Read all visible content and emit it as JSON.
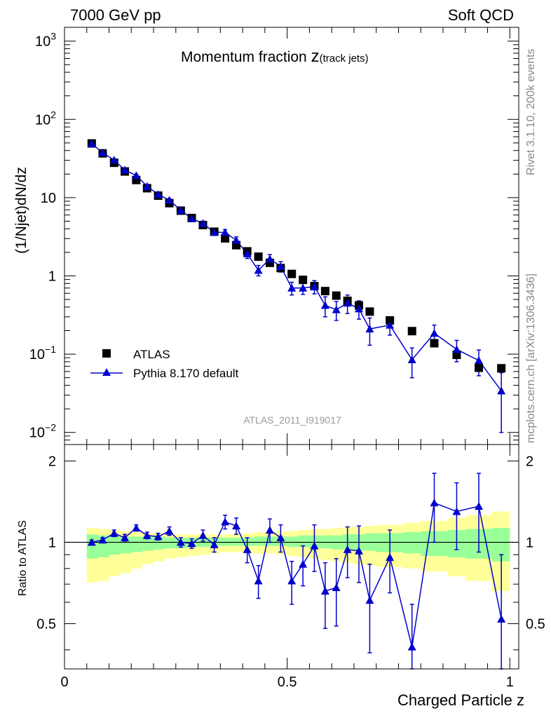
{
  "header": {
    "left": "7000 GeV pp",
    "right": "Soft QCD"
  },
  "side_labels": {
    "rivet": "Rivet 3.1.10,  200k events",
    "mcplots": "mcplots.cern.ch [arXiv:1306.3436]"
  },
  "colors": {
    "pythia": "#0000cc",
    "atlas": "#000000",
    "band_inner": "#99ff99",
    "band_outer": "#ffff99",
    "analysis_label": "#999999"
  },
  "chart_data": [
    {
      "type": "scatter",
      "title": "Momentum fraction",
      "title_symbol": "z",
      "title_subscript": "(track jets)",
      "ylabel": "(1/Njet)dN/dz",
      "yscale": "log",
      "ylim": [
        0.007,
        1500
      ],
      "xlim": [
        0,
        1.02
      ],
      "analysis_label": "ATLAS_2011_I919017",
      "y_ticks": [
        {
          "value": 1000,
          "base": "10",
          "exp": "3"
        },
        {
          "value": 100,
          "base": "10",
          "exp": "2"
        },
        {
          "value": 10,
          "base": "10",
          "exp": ""
        },
        {
          "value": 1,
          "base": "1",
          "exp": ""
        },
        {
          "value": 0.1,
          "base": "10",
          "exp": "−1"
        },
        {
          "value": 0.01,
          "base": "10",
          "exp": "−2"
        }
      ],
      "legend": {
        "position": "bottom-left",
        "entries": [
          "ATLAS",
          "Pythia 8.170 default"
        ]
      },
      "x": [
        0.0611,
        0.0857,
        0.1114,
        0.1354,
        0.1611,
        0.1854,
        0.2103,
        0.2354,
        0.2611,
        0.2857,
        0.3109,
        0.3363,
        0.3606,
        0.3857,
        0.4103,
        0.4354,
        0.4611,
        0.4854,
        0.5103,
        0.5354,
        0.5611,
        0.5854,
        0.6103,
        0.6354,
        0.6611,
        0.6854,
        0.7306,
        0.7803,
        0.8303,
        0.8806,
        0.9303,
        0.9809
      ],
      "series": [
        {
          "name": "ATLAS",
          "values": [
            49.3,
            36.8,
            27.9,
            21.6,
            16.8,
            13.2,
            10.6,
            8.5,
            6.82,
            5.49,
            4.46,
            3.67,
            3.02,
            2.47,
            2.06,
            1.76,
            1.47,
            1.26,
            1.06,
            0.89,
            0.74,
            0.64,
            0.56,
            0.48,
            0.42,
            0.35,
            0.27,
            0.197,
            0.138,
            0.098,
            0.067,
            0.066
          ]
        },
        {
          "name": "Pythia 8.170 default",
          "values": [
            49.0,
            37.5,
            30.2,
            22.6,
            19.2,
            14.0,
            11.0,
            9.3,
            6.9,
            5.4,
            4.7,
            3.6,
            3.6,
            2.85,
            1.92,
            1.18,
            1.65,
            1.32,
            0.7,
            0.7,
            0.73,
            0.42,
            0.37,
            0.45,
            0.38,
            0.21,
            0.235,
            0.085,
            0.185,
            0.115,
            0.083,
            0.034
          ],
          "err_down": [
            1.2,
            0.9,
            0.8,
            0.7,
            0.6,
            0.5,
            0.4,
            0.4,
            0.3,
            0.3,
            0.3,
            0.3,
            0.3,
            0.3,
            0.25,
            0.18,
            0.22,
            0.2,
            0.13,
            0.12,
            0.14,
            0.12,
            0.1,
            0.12,
            0.1,
            0.08,
            0.06,
            0.035,
            0.05,
            0.035,
            0.03,
            0.024
          ],
          "err_up": [
            1.2,
            0.9,
            0.8,
            0.7,
            0.6,
            0.5,
            0.4,
            0.4,
            0.3,
            0.3,
            0.3,
            0.3,
            0.3,
            0.3,
            0.25,
            0.18,
            0.22,
            0.2,
            0.13,
            0.12,
            0.14,
            0.12,
            0.1,
            0.12,
            0.1,
            0.08,
            0.06,
            0.035,
            0.05,
            0.035,
            0.03,
            0.024
          ]
        }
      ]
    },
    {
      "type": "scatter",
      "ylabel": "Ratio to ATLAS",
      "xlabel": "Charged Particle z",
      "ylim": [
        0.34,
        2.3
      ],
      "xlim": [
        0,
        1.02
      ],
      "x_ticks": [
        "0",
        "0.5",
        "1"
      ],
      "y_ticks": [
        "0.5",
        "1",
        "2"
      ],
      "reference_line": 1,
      "band": {
        "edges": [
          0.05,
          0.075,
          0.1,
          0.125,
          0.15,
          0.175,
          0.2,
          0.225,
          0.25,
          0.275,
          0.3,
          0.325,
          0.35,
          0.375,
          0.4,
          0.425,
          0.45,
          0.475,
          0.5,
          0.525,
          0.55,
          0.575,
          0.6,
          0.625,
          0.65,
          0.675,
          0.7,
          0.76,
          0.8,
          0.86,
          0.9,
          0.96,
          1.0
        ],
        "inner_lo": [
          0.87,
          0.88,
          0.9,
          0.91,
          0.92,
          0.93,
          0.94,
          0.95,
          0.95,
          0.96,
          0.96,
          0.97,
          0.97,
          0.97,
          0.97,
          0.97,
          0.97,
          0.97,
          0.96,
          0.96,
          0.95,
          0.95,
          0.94,
          0.94,
          0.93,
          0.93,
          0.92,
          0.91,
          0.89,
          0.88,
          0.87,
          0.85
        ],
        "inner_hi": [
          1.07,
          1.06,
          1.06,
          1.05,
          1.05,
          1.05,
          1.05,
          1.04,
          1.04,
          1.04,
          1.04,
          1.04,
          1.04,
          1.04,
          1.04,
          1.05,
          1.05,
          1.05,
          1.05,
          1.06,
          1.06,
          1.06,
          1.06,
          1.07,
          1.07,
          1.08,
          1.08,
          1.09,
          1.1,
          1.11,
          1.12,
          1.13
        ],
        "outer_lo": [
          0.71,
          0.72,
          0.75,
          0.77,
          0.8,
          0.83,
          0.85,
          0.87,
          0.88,
          0.89,
          0.9,
          0.91,
          0.92,
          0.92,
          0.91,
          0.91,
          0.91,
          0.9,
          0.89,
          0.88,
          0.87,
          0.86,
          0.85,
          0.84,
          0.83,
          0.82,
          0.81,
          0.8,
          0.78,
          0.75,
          0.72,
          0.66
        ],
        "outer_hi": [
          1.13,
          1.12,
          1.11,
          1.1,
          1.09,
          1.08,
          1.08,
          1.07,
          1.07,
          1.07,
          1.07,
          1.07,
          1.07,
          1.08,
          1.08,
          1.09,
          1.09,
          1.1,
          1.1,
          1.11,
          1.12,
          1.12,
          1.13,
          1.14,
          1.14,
          1.15,
          1.16,
          1.18,
          1.2,
          1.23,
          1.26,
          1.3
        ]
      },
      "x": [
        0.0611,
        0.0857,
        0.1114,
        0.1354,
        0.1611,
        0.1854,
        0.2103,
        0.2354,
        0.2611,
        0.2857,
        0.3109,
        0.3363,
        0.3606,
        0.3857,
        0.4103,
        0.4354,
        0.4611,
        0.4854,
        0.5103,
        0.5354,
        0.5611,
        0.5854,
        0.6103,
        0.6354,
        0.6611,
        0.6854,
        0.7306,
        0.7803,
        0.8303,
        0.8806,
        0.9303,
        0.9809
      ],
      "series": [
        {
          "name": "Pythia 8.170 default",
          "values": [
            1.0,
            1.02,
            1.08,
            1.04,
            1.13,
            1.06,
            1.05,
            1.1,
            1.0,
            0.99,
            1.06,
            0.98,
            1.19,
            1.15,
            0.94,
            0.72,
            1.11,
            1.04,
            0.72,
            0.83,
            0.97,
            0.66,
            0.68,
            0.94,
            0.93,
            0.61,
            0.88,
            0.41,
            1.4,
            1.3,
            1.36,
            0.52
          ],
          "err_down": [
            0.02,
            0.02,
            0.03,
            0.03,
            0.03,
            0.03,
            0.03,
            0.04,
            0.04,
            0.04,
            0.05,
            0.06,
            0.07,
            0.08,
            0.1,
            0.1,
            0.11,
            0.12,
            0.13,
            0.14,
            0.19,
            0.18,
            0.19,
            0.2,
            0.22,
            0.22,
            0.23,
            0.18,
            0.4,
            0.36,
            0.44,
            0.25
          ],
          "err_up": [
            0.02,
            0.02,
            0.03,
            0.03,
            0.03,
            0.03,
            0.03,
            0.04,
            0.04,
            0.04,
            0.05,
            0.06,
            0.07,
            0.08,
            0.1,
            0.1,
            0.11,
            0.12,
            0.13,
            0.14,
            0.19,
            0.18,
            0.19,
            0.2,
            0.22,
            0.22,
            0.23,
            0.18,
            0.4,
            0.36,
            0.44,
            0.38
          ]
        }
      ]
    }
  ]
}
